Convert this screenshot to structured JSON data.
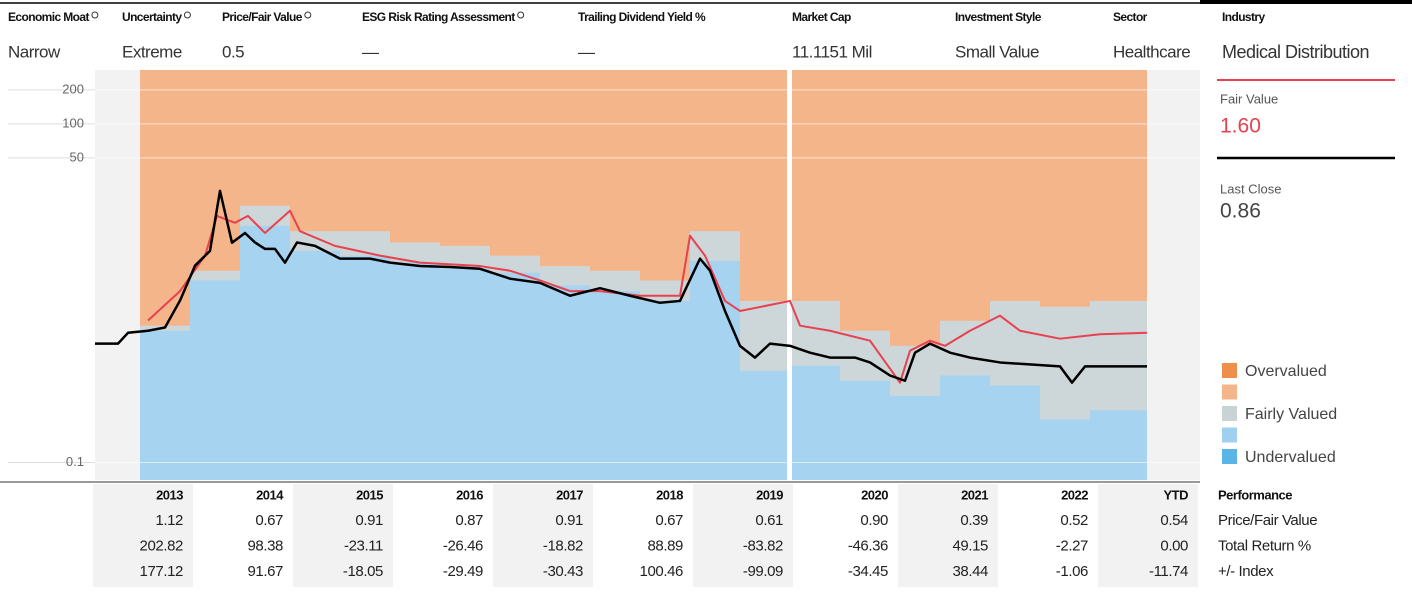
{
  "header": {
    "columns": [
      {
        "label": "Economic Moat",
        "value": "Narrow"
      },
      {
        "label": "Uncertainty",
        "value": "Extreme"
      },
      {
        "label": "Price/Fair Value",
        "value": "0.5"
      },
      {
        "label": "ESG Risk Rating Assessment",
        "value": "—"
      },
      {
        "label": "Trailing Dividend Yield %",
        "value": "—"
      },
      {
        "label": "Market Cap",
        "value": "11.1151 Mil"
      },
      {
        "label": "Investment Style",
        "value": "Small Value"
      },
      {
        "label": "Sector",
        "value": "Healthcare"
      },
      {
        "label": "Industry",
        "value": "Medical Distribution"
      }
    ]
  },
  "chart_data": {
    "type": "line",
    "log_scale": true,
    "xlim": [
      2013.05,
      2024.1
    ],
    "ylim": [
      0.07,
      300
    ],
    "yticks": [
      0.1,
      50,
      100,
      200
    ],
    "grid": true,
    "series": [
      {
        "color": "#000000",
        "x": [
          2013.05,
          2013.28,
          2013.38,
          2013.58,
          2013.75,
          2013.9,
          2014.05,
          2014.2,
          2014.3,
          2014.42,
          2014.55,
          2014.65,
          2014.75,
          2014.85,
          2014.95,
          2015.07,
          2015.25,
          2015.5,
          2015.8,
          2016.0,
          2016.3,
          2016.6,
          2016.9,
          2017.2,
          2017.5,
          2017.8,
          2018.1,
          2018.4,
          2018.7,
          2018.9,
          2019.1,
          2019.2,
          2019.35,
          2019.5,
          2019.65,
          2019.8,
          2020.0,
          2020.2,
          2020.4,
          2020.65,
          2020.8,
          2021.0,
          2021.15,
          2021.25,
          2021.4,
          2021.6,
          2021.8,
          2022.1,
          2022.7,
          2022.82,
          2022.95,
          2023.57
        ],
        "values": [
          1.13,
          1.13,
          1.41,
          1.47,
          1.57,
          2.72,
          5.54,
          7.5,
          25.5,
          8.85,
          10.8,
          8.9,
          7.8,
          7.8,
          5.9,
          8.9,
          8.3,
          6.4,
          6.4,
          5.9,
          5.5,
          5.4,
          5.2,
          4.25,
          3.9,
          3.0,
          3.5,
          3.0,
          2.6,
          2.7,
          6.4,
          5.0,
          2.2,
          1.08,
          0.85,
          1.13,
          1.08,
          0.94,
          0.85,
          0.85,
          0.77,
          0.59,
          0.53,
          0.94,
          1.13,
          0.94,
          0.85,
          0.77,
          0.71,
          0.51,
          0.71,
          0.71
        ]
      },
      {
        "color": "#e8414f",
        "x": [
          2013.58,
          2013.9,
          2014.15,
          2014.27,
          2014.45,
          2014.58,
          2014.75,
          2015.0,
          2015.1,
          2015.45,
          2015.9,
          2016.3,
          2016.9,
          2017.2,
          2017.5,
          2017.8,
          2018.1,
          2018.5,
          2018.9,
          2019.0,
          2019.15,
          2019.35,
          2019.5,
          2020.0,
          2020.1,
          2020.4,
          2020.8,
          2021.1,
          2021.2,
          2021.4,
          2021.55,
          2021.8,
          2022.1,
          2022.3,
          2022.7,
          2023.1,
          2023.57
        ],
        "values": [
          1.81,
          3.3,
          6.8,
          15.3,
          13.3,
          15.3,
          10.8,
          17.0,
          11.2,
          8.3,
          6.8,
          5.9,
          5.5,
          5.0,
          4.1,
          3.3,
          3.3,
          3.0,
          3.0,
          10.2,
          6.8,
          2.7,
          2.2,
          2.7,
          1.63,
          1.47,
          1.2,
          0.51,
          0.98,
          1.2,
          1.08,
          1.47,
          2.0,
          1.47,
          1.25,
          1.37,
          1.41
        ]
      }
    ],
    "bands": {
      "edges": [
        2013.5,
        2014.0,
        2014.5,
        2015.0,
        2015.5,
        2016.0,
        2016.5,
        2017.0,
        2017.5,
        2018.0,
        2018.5,
        2019.0,
        2019.5,
        2020.0,
        2020.5,
        2021.0,
        2021.5,
        2022.0,
        2022.5,
        2023.0,
        2023.57
      ],
      "series": [
        {
          "name": "Overvalued",
          "color": "#f5b58a"
        },
        {
          "name": "Fairly Valued",
          "color": "#cdd6d8",
          "values": [
            1.63,
            5.0,
            18.8,
            11.2,
            11.2,
            8.9,
            8.3,
            6.8,
            5.5,
            5.0,
            4.1,
            11.2,
            2.7,
            2.7,
            1.47,
            1.08,
            1.8,
            2.7,
            2.4,
            2.7
          ]
        },
        {
          "name": "Undervalued",
          "color": "#a6d3ef",
          "values": [
            1.47,
            4.1,
            12.5,
            7.5,
            6.8,
            5.9,
            5.2,
            4.8,
            3.7,
            3.3,
            2.7,
            6.1,
            0.65,
            0.72,
            0.53,
            0.39,
            0.59,
            0.48,
            0.24,
            0.29
          ]
        }
      ]
    },
    "legend": [
      {
        "name": "Overvalued",
        "color": "#ef8f4c"
      },
      {
        "name": null,
        "color": "#f5b58a"
      },
      {
        "name": "Fairly Valued",
        "color": "#c8d3d5"
      },
      {
        "name": null,
        "color": "#9fd0f0"
      },
      {
        "name": "Undervalued",
        "color": "#5ab4e6"
      }
    ]
  },
  "side_panel": {
    "fair_value_label": "Fair Value",
    "fair_value": "1.60",
    "last_close_label": "Last Close",
    "last_close": "0.86"
  },
  "performance": {
    "title": "Performance",
    "years": [
      "2013",
      "2014",
      "2015",
      "2016",
      "2017",
      "2018",
      "2019",
      "2020",
      "2021",
      "2022",
      "YTD"
    ],
    "rows": [
      {
        "label": "Price/Fair Value",
        "values": [
          "1.12",
          "0.67",
          "0.91",
          "0.87",
          "0.91",
          "0.67",
          "0.61",
          "0.90",
          "0.39",
          "0.52",
          "0.54"
        ]
      },
      {
        "label": "Total Return %",
        "values": [
          "202.82",
          "98.38",
          "-23.11",
          "-26.46",
          "-18.82",
          "88.89",
          "-83.82",
          "-46.36",
          "49.15",
          "-2.27",
          "0.00"
        ]
      },
      {
        "label": "+/- Index",
        "values": [
          "177.12",
          "91.67",
          "-18.05",
          "-29.49",
          "-30.43",
          "100.46",
          "-99.09",
          "-34.45",
          "38.44",
          "-1.06",
          "-11.74"
        ]
      }
    ]
  }
}
